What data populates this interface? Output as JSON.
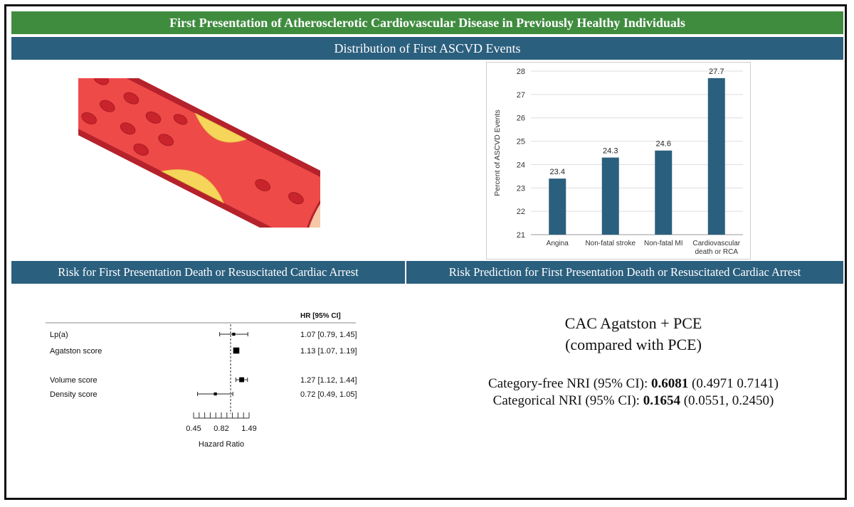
{
  "header": {
    "title": "First  Presentation of Atherosclerotic Cardiovascular Disease in Previously Healthy Individuals",
    "subtitle": "Distribution of First ASCVD Events"
  },
  "sections": {
    "left_title": "Risk for First Presentation Death or Resuscitated Cardiac Arrest",
    "right_title": "Risk Prediction for First Presentation Death or Resuscitated Cardiac Arrest"
  },
  "chart_data": [
    {
      "type": "bar",
      "categories": [
        "Angina",
        "Non-fatal stroke",
        "Non-fatal MI",
        "Cardiovascular death or RCA"
      ],
      "category_lines": [
        [
          "Angina"
        ],
        [
          "Non-fatal stroke"
        ],
        [
          "Non-fatal MI"
        ],
        [
          "Cardiovascular",
          "death or RCA"
        ]
      ],
      "values": [
        23.4,
        24.3,
        24.6,
        27.7
      ],
      "data_labels": [
        "23.4",
        "24.3",
        "24.6",
        "27.7"
      ],
      "ylabel": "Percent of ASCVD Events",
      "ylim": [
        21,
        28
      ],
      "yticks": [
        21,
        22,
        23,
        24,
        25,
        26,
        27,
        28
      ],
      "grid": true,
      "bar_color": "#2b5f7e"
    },
    {
      "type": "forest",
      "column_header": "HR [95% CI]",
      "rows": [
        {
          "label": "Lp(a)",
          "hr": 1.07,
          "lo": 0.79,
          "hi": 1.45,
          "text": "1.07 [0.79, 1.45]",
          "weight": 1
        },
        {
          "label": "Agatston score",
          "hr": 1.13,
          "lo": 1.07,
          "hi": 1.19,
          "text": "1.13 [1.07, 1.19]",
          "weight": 3
        },
        {
          "label": "Volume score",
          "hr": 1.27,
          "lo": 1.12,
          "hi": 1.44,
          "text": "1.27 [1.12, 1.44]",
          "weight": 2.2
        },
        {
          "label": "Density score",
          "hr": 0.72,
          "lo": 0.49,
          "hi": 1.05,
          "text": "0.72 [0.49, 1.05]",
          "weight": 1
        }
      ],
      "xlabel": "Hazard Ratio",
      "xtick_labels": [
        "0.45",
        "0.82",
        "1.49"
      ],
      "xlim": [
        0.45,
        1.49
      ],
      "reference_line": 1
    }
  ],
  "cac": {
    "title_line1": "CAC Agatston + PCE",
    "title_line2": "(compared with PCE)",
    "cf_label": "Category-free NRI (95% CI): ",
    "cf_value": "0.6081",
    "cf_ci": " (0.4971 0.7141)",
    "cat_label": "Categorical NRI (95% CI): ",
    "cat_value": "0.1654",
    "cat_ci": " (0.0551, 0.2450)"
  }
}
